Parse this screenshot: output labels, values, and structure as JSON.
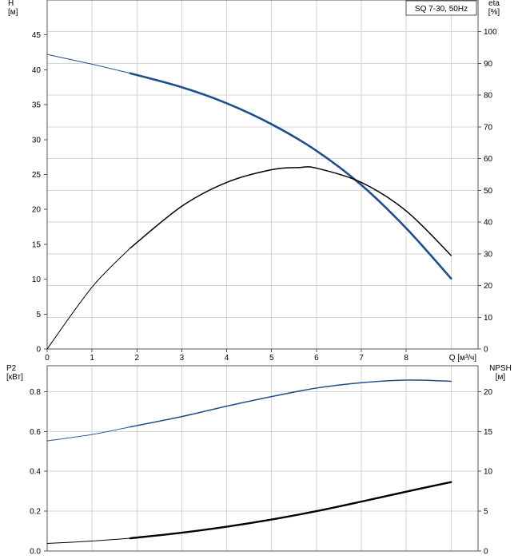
{
  "chart_data": [
    {
      "type": "line",
      "legend": "SQ 7-30, 50Hz",
      "xlabel": "Q [м³/ч]",
      "xlim": [
        0,
        9.6
      ],
      "xticks": [
        0,
        1,
        2,
        3,
        4,
        5,
        6,
        7,
        8
      ],
      "ylabel_left": [
        "H",
        "[м]"
      ],
      "ylim_left": [
        0,
        50
      ],
      "yticks_left": [
        0,
        5,
        10,
        15,
        20,
        25,
        30,
        35,
        40,
        45
      ],
      "ylabel_right": [
        "eta",
        "[%]"
      ],
      "ylim_right": [
        0,
        110
      ],
      "yticks_right": [
        0,
        10,
        20,
        30,
        40,
        50,
        60,
        70,
        80,
        90,
        100
      ],
      "grid": true,
      "series": [
        {
          "axis": "left",
          "color": "#1f4e8c",
          "x": [
            0,
            1,
            1.85,
            3,
            4,
            5,
            6,
            7,
            8,
            9
          ],
          "y": [
            42.2,
            40.8,
            39.5,
            37.5,
            35.2,
            32.2,
            28.4,
            23.5,
            17.3,
            10.1
          ]
        },
        {
          "axis": "right",
          "color": "#000000",
          "x": [
            0,
            1,
            1.85,
            3,
            4,
            5,
            5.6,
            6,
            7,
            8,
            9
          ],
          "y": [
            0,
            19.5,
            31.8,
            45,
            52.5,
            56.5,
            57.2,
            57,
            52.5,
            43.5,
            29.5
          ]
        }
      ]
    },
    {
      "type": "line",
      "xlim": [
        0,
        9.6
      ],
      "ylabel_left": [
        "P2",
        "[кВт]"
      ],
      "ylim_left": [
        0,
        0.93
      ],
      "yticks_left": [
        0.0,
        0.2,
        0.4,
        0.6,
        0.8
      ],
      "yticks_left_labels": [
        "0.0",
        "0.2",
        "0.4",
        "0.6",
        "0.8"
      ],
      "ylabel_right": [
        "NPSH",
        "[м]"
      ],
      "ylim_right": [
        0,
        23.25
      ],
      "yticks_right": [
        0,
        5,
        10,
        15,
        20
      ],
      "grid": true,
      "series": [
        {
          "axis": "left",
          "color": "#1f4e8c",
          "x": [
            0,
            1,
            1.85,
            3,
            4,
            5,
            6,
            7,
            8,
            9
          ],
          "y": [
            0.553,
            0.585,
            0.623,
            0.675,
            0.727,
            0.775,
            0.818,
            0.845,
            0.858,
            0.852
          ]
        },
        {
          "axis": "right",
          "color": "#000000",
          "x": [
            0,
            1,
            1.85,
            3,
            4,
            5,
            6,
            7,
            8,
            9
          ],
          "y": [
            0.95,
            1.25,
            1.6,
            2.3,
            3.05,
            3.95,
            5.0,
            6.2,
            7.45,
            8.65
          ]
        }
      ]
    }
  ]
}
